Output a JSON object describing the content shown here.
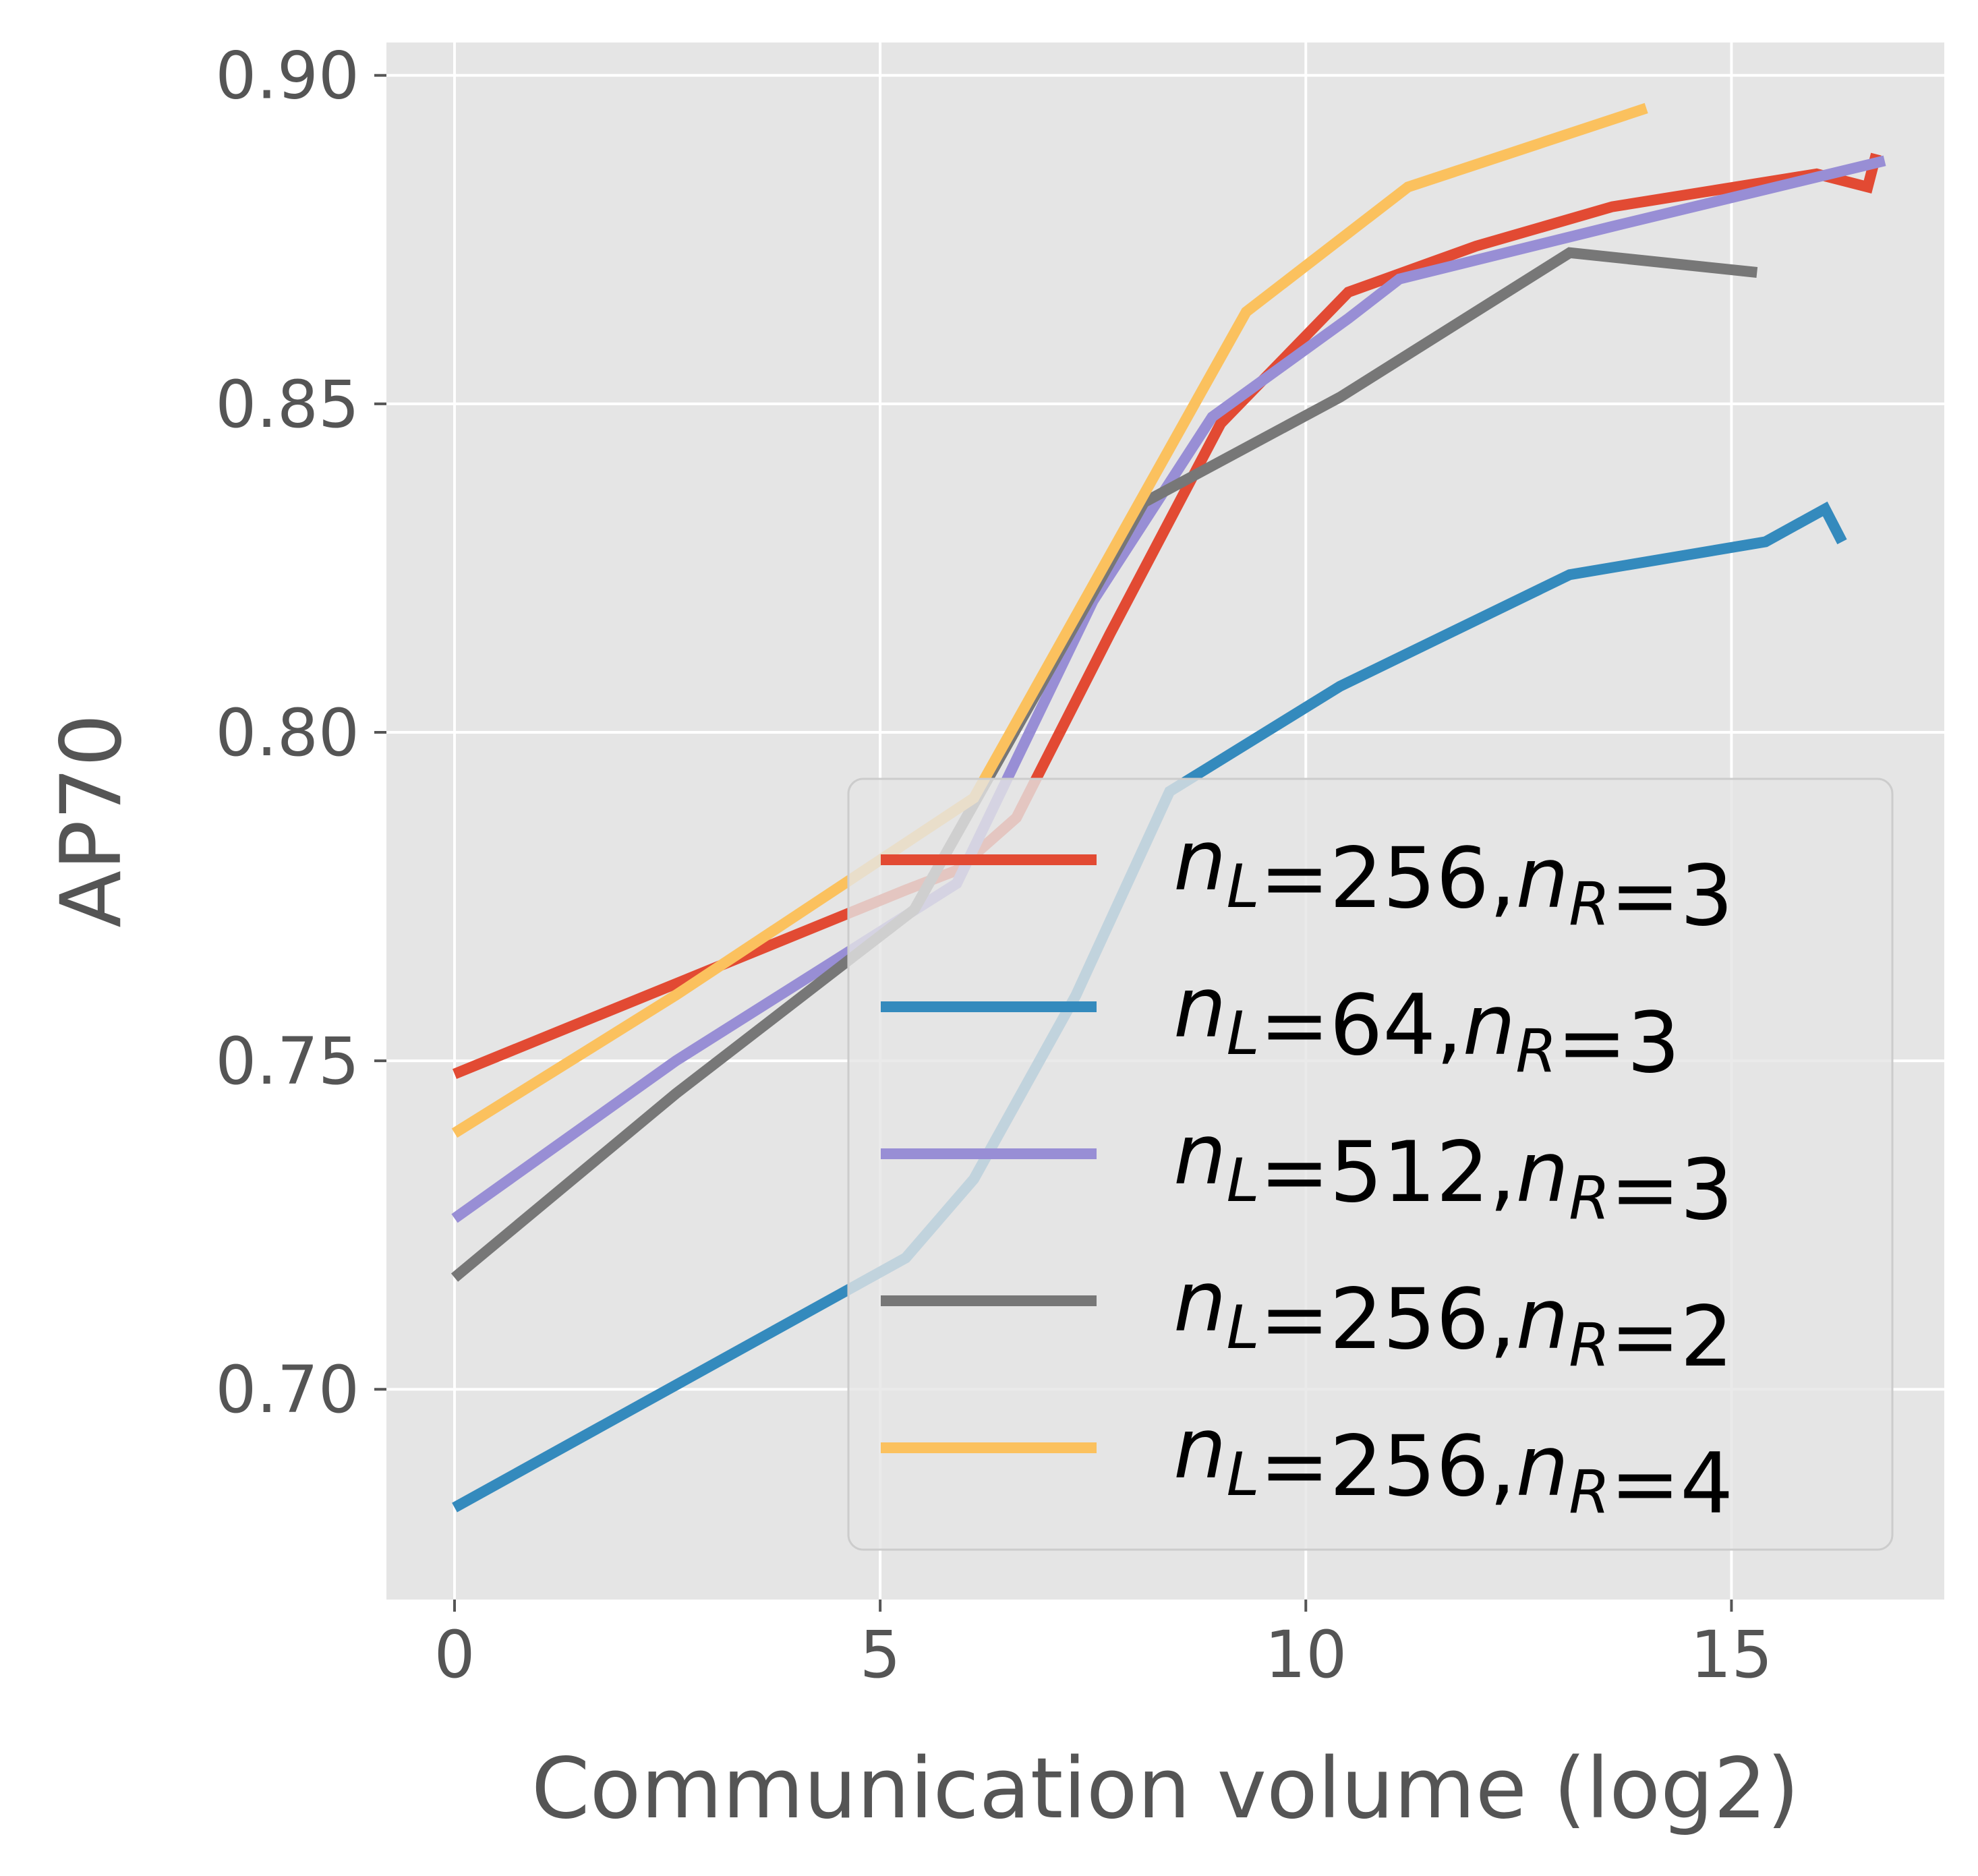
{
  "chart_data": {
    "type": "line",
    "title": "",
    "xlabel": "Communication volume (log2)",
    "ylabel": "AP70",
    "xlim": [
      -0.8,
      17.5
    ],
    "ylim": [
      0.668,
      0.905
    ],
    "xticks": [
      0,
      5,
      10,
      15
    ],
    "xtick_labels": [
      "0",
      "5",
      "10",
      "15"
    ],
    "yticks": [
      0.7,
      0.75,
      0.8,
      0.85,
      0.9
    ],
    "ytick_labels": [
      "0.70",
      "0.75",
      "0.80",
      "0.85",
      "0.90"
    ],
    "grid": true,
    "legend_position": "lower-right",
    "series": [
      {
        "name": "n_L=256,n_R=3",
        "legend": {
          "label_main": "n",
          "label_sub": "L",
          "mid": "=256,",
          "label_main2": "n",
          "label_sub2": "R",
          "end": "=3"
        },
        "color": "#E24A33",
        "x": [
          0,
          5.3,
          5.9,
          6.6,
          7.7,
          9.0,
          10.5,
          12.0,
          13.6,
          16.0,
          16.6,
          16.7
        ],
        "y": [
          0.748,
          0.776,
          0.779,
          0.787,
          0.815,
          0.847,
          0.867,
          0.874,
          0.88,
          0.885,
          0.883,
          0.888
        ]
      },
      {
        "name": "n_L=64,n_R=3",
        "legend": {
          "label_main": "n",
          "label_sub": "L",
          "mid": "=64,",
          "label_main2": "n",
          "label_sub2": "R",
          "end": "=3"
        },
        "color": "#348ABD",
        "x": [
          0,
          5.3,
          6.1,
          7.3,
          8.4,
          10.4,
          13.1,
          15.4,
          16.1,
          16.3
        ],
        "y": [
          0.682,
          0.72,
          0.732,
          0.76,
          0.791,
          0.807,
          0.824,
          0.829,
          0.834,
          0.829
        ]
      },
      {
        "name": "n_L=512,n_R=3",
        "legend": {
          "label_main": "n",
          "label_sub": "L",
          "mid": "=512,",
          "label_main2": "n",
          "label_sub2": "R",
          "end": "=3"
        },
        "color": "#988ED5",
        "x": [
          0,
          2.6,
          5.9,
          7.5,
          8.9,
          10.5,
          11.1,
          13.6,
          16.8
        ],
        "y": [
          0.726,
          0.75,
          0.777,
          0.82,
          0.848,
          0.863,
          0.869,
          0.877,
          0.887
        ]
      },
      {
        "name": "n_L=256,n_R=2",
        "legend": {
          "label_main": "n",
          "label_sub": "L",
          "mid": "=256,",
          "label_main2": "n",
          "label_sub2": "R",
          "end": "=2"
        },
        "color": "#777777",
        "x": [
          0,
          2.6,
          5.4,
          8.1,
          10.4,
          13.1,
          15.3
        ],
        "y": [
          0.717,
          0.745,
          0.773,
          0.835,
          0.851,
          0.873,
          0.87
        ]
      },
      {
        "name": "n_L=256,n_R=4",
        "legend": {
          "label_main": "n",
          "label_sub": "L",
          "mid": "=256,",
          "label_main2": "n",
          "label_sub2": "R",
          "end": "=4"
        },
        "color": "#FBC15E",
        "x": [
          0,
          2.6,
          6.1,
          9.3,
          11.2,
          14.0
        ],
        "y": [
          0.739,
          0.76,
          0.79,
          0.864,
          0.883,
          0.895
        ]
      }
    ]
  }
}
